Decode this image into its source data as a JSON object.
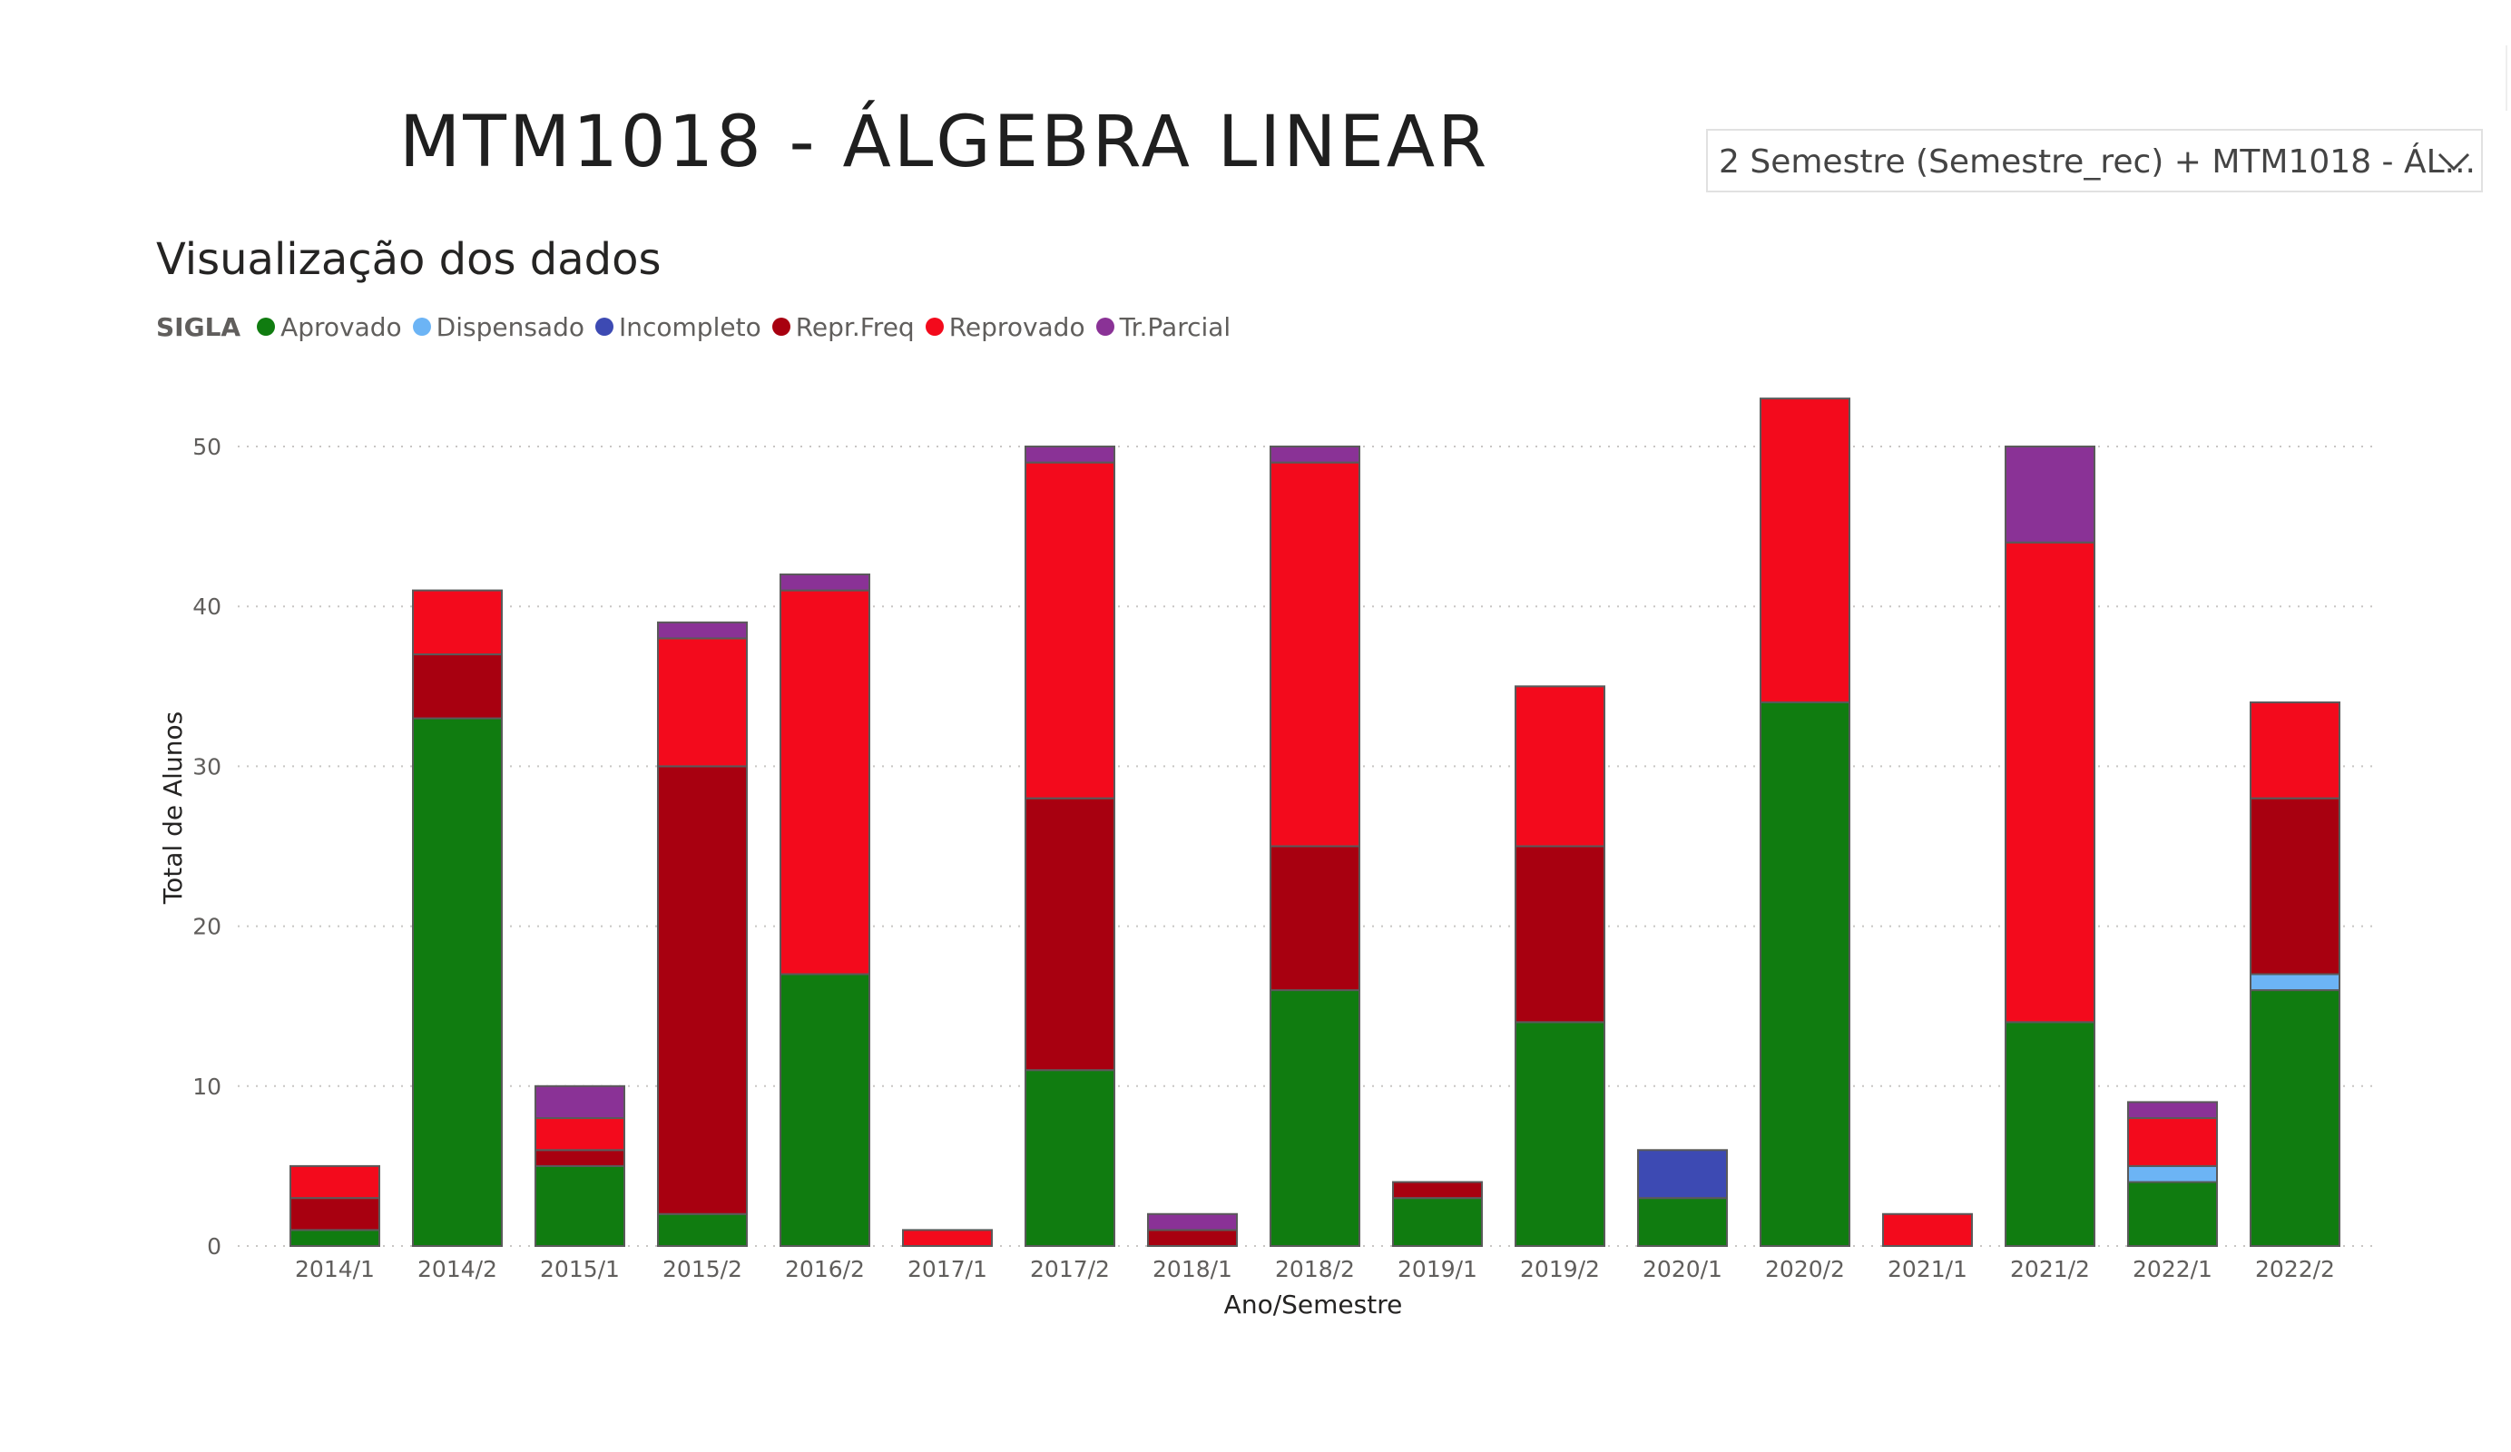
{
  "header": {
    "title": "MTM1018 - ÁLGEBRA LINEAR"
  },
  "slicer": {
    "selected": "2 Semestre (Semestre_rec) + MTM1018 - ÁL...",
    "icon": "chevron-down-icon"
  },
  "chart_data": {
    "type": "bar",
    "stacked": true,
    "title": "Visualização dos dados",
    "xlabel": "Ano/Semestre",
    "ylabel": "Total de Alunos",
    "ylim": [
      0,
      55
    ],
    "yticks": [
      0,
      10,
      20,
      30,
      40,
      50
    ],
    "grid": true,
    "legend_title": "SIGLA",
    "legend_position": "top-left",
    "categories": [
      "2014/1",
      "2014/2",
      "2015/1",
      "2015/2",
      "2016/2",
      "2017/1",
      "2017/2",
      "2018/1",
      "2018/2",
      "2019/1",
      "2019/2",
      "2020/1",
      "2020/2",
      "2021/1",
      "2021/2",
      "2022/1",
      "2022/2"
    ],
    "series": [
      {
        "name": "Aprovado",
        "color": "#107c10",
        "values": [
          1,
          33,
          5,
          2,
          17,
          0,
          11,
          0,
          16,
          3,
          14,
          3,
          34,
          0,
          14,
          4,
          16
        ]
      },
      {
        "name": "Dispensado",
        "color": "#6cb4f5",
        "values": [
          0,
          0,
          0,
          0,
          0,
          0,
          0,
          0,
          0,
          0,
          0,
          0,
          0,
          0,
          0,
          1,
          1
        ]
      },
      {
        "name": "Incompleto",
        "color": "#3d4ab3",
        "values": [
          0,
          0,
          0,
          0,
          0,
          0,
          0,
          0,
          0,
          0,
          0,
          3,
          0,
          0,
          0,
          0,
          0
        ]
      },
      {
        "name": "Repr.Freq",
        "color": "#a80010",
        "values": [
          2,
          4,
          1,
          28,
          0,
          0,
          17,
          1,
          9,
          1,
          11,
          0,
          0,
          0,
          0,
          0,
          11
        ]
      },
      {
        "name": "Reprovado",
        "color": "#f30a1c",
        "values": [
          2,
          4,
          2,
          8,
          24,
          1,
          21,
          0,
          24,
          0,
          10,
          0,
          19,
          2,
          30,
          3,
          6
        ]
      },
      {
        "name": "Tr.Parcial",
        "color": "#8a3296",
        "values": [
          0,
          0,
          2,
          1,
          1,
          0,
          1,
          1,
          1,
          0,
          0,
          0,
          0,
          0,
          6,
          1,
          0
        ]
      }
    ]
  }
}
